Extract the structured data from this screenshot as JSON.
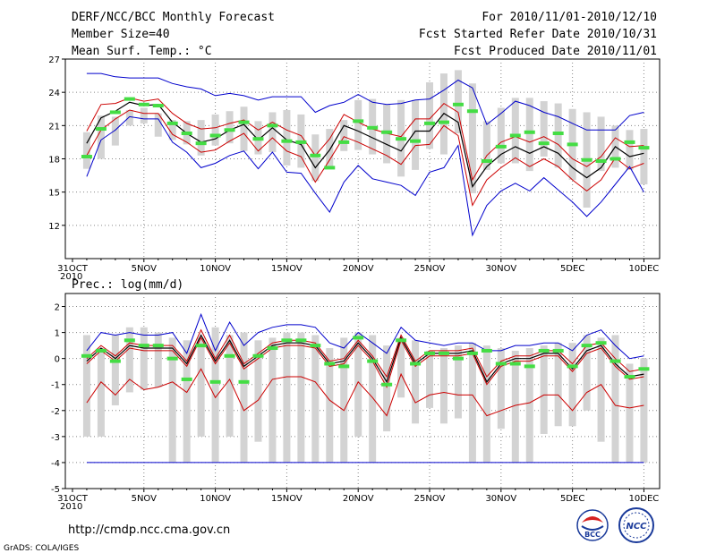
{
  "header": {
    "title": "DERF/NCC/BCC Monthly Forecast",
    "member_size": "Member Size=40",
    "variable": "Mean Surf. Temp.: °C",
    "forecast_period": "For 2010/11/01-2010/12/10",
    "started_refer": "Fcst Started Refer Date 2010/10/31",
    "produced": "Fcst Produced Date 2010/11/01"
  },
  "footer": {
    "url": "http://cmdp.ncc.cma.gov.cn",
    "credit": "GrADS: COLA/IGES",
    "logo_bcc_text": "BCC",
    "logo_ncc_text": "NCC"
  },
  "colors": {
    "max_min": "#0000cc",
    "spread": "#cc0000",
    "mean": "#000000",
    "bars": "#d3d3d3",
    "observed": "#44dd44"
  },
  "chart_data": [
    {
      "type": "line",
      "title": "Mean Surf. Temp.: °C",
      "x_tick_labels": [
        "31OCT",
        "5NOV",
        "10NOV",
        "15NOV",
        "20NOV",
        "25NOV",
        "30NOV",
        "5DEC",
        "10DEC"
      ],
      "x_tick_year": "2010",
      "x_tick_days": [
        0,
        5,
        10,
        15,
        20,
        25,
        30,
        35,
        40
      ],
      "y_ticks": [
        12,
        15,
        18,
        21,
        24,
        27
      ],
      "ylim": [
        9,
        27
      ],
      "grid": true,
      "days": [
        1,
        2,
        3,
        4,
        5,
        6,
        7,
        8,
        9,
        10,
        11,
        12,
        13,
        14,
        15,
        16,
        17,
        18,
        19,
        20,
        21,
        22,
        23,
        24,
        25,
        26,
        27,
        28,
        29,
        30,
        31,
        32,
        33,
        34,
        35,
        36,
        37,
        38,
        39,
        40
      ],
      "series": [
        {
          "name": "max",
          "color": "#0000cc",
          "values": [
            25.7,
            25.7,
            25.4,
            25.3,
            25.3,
            25.3,
            24.8,
            24.5,
            24.3,
            23.7,
            23.9,
            23.7,
            23.3,
            23.6,
            23.6,
            23.6,
            22.2,
            22.8,
            23.1,
            23.8,
            23.1,
            22.9,
            23.0,
            23.3,
            23.4,
            24.2,
            25.1,
            24.4,
            21.1,
            22.1,
            23.2,
            22.8,
            22.2,
            21.8,
            21.2,
            20.6,
            20.6,
            20.6,
            21.9,
            22.2
          ]
        },
        {
          "name": "upper",
          "color": "#cc0000",
          "values": [
            20.5,
            22.9,
            23.0,
            23.5,
            23.2,
            23.4,
            22.1,
            21.2,
            20.7,
            20.8,
            21.2,
            21.5,
            20.6,
            21.3,
            20.6,
            20.1,
            18.3,
            19.8,
            22.0,
            21.3,
            20.7,
            20.3,
            20.0,
            21.6,
            21.6,
            23.0,
            22.2,
            16.1,
            18.3,
            19.5,
            20.0,
            19.5,
            20.0,
            19.3,
            18.0,
            17.3,
            18.2,
            19.9,
            19.1,
            19.2
          ]
        },
        {
          "name": "mean",
          "color": "#000000",
          "values": [
            19.4,
            21.7,
            22.3,
            23.1,
            22.8,
            22.9,
            21.3,
            20.3,
            19.5,
            19.8,
            20.6,
            21.1,
            19.7,
            20.8,
            19.7,
            19.3,
            17.2,
            18.8,
            21.0,
            20.5,
            19.9,
            19.3,
            18.7,
            20.5,
            20.5,
            22.1,
            21.3,
            15.5,
            17.3,
            18.4,
            19.1,
            18.5,
            19.1,
            18.5,
            17.2,
            16.3,
            17.2,
            19.1,
            18.2,
            18.5
          ]
        },
        {
          "name": "lower",
          "color": "#cc0000",
          "values": [
            18.3,
            20.6,
            21.6,
            22.4,
            22.1,
            22.1,
            20.2,
            19.5,
            18.6,
            18.8,
            19.6,
            20.3,
            18.7,
            19.9,
            18.7,
            18.2,
            15.9,
            17.9,
            20.0,
            19.5,
            18.9,
            18.3,
            17.5,
            19.2,
            19.3,
            21.0,
            20.1,
            13.8,
            16.1,
            17.2,
            18.1,
            17.3,
            18.0,
            17.3,
            16.1,
            15.1,
            16.1,
            18.1,
            17.1,
            17.6
          ]
        },
        {
          "name": "min",
          "color": "#0000cc",
          "values": [
            16.4,
            19.7,
            20.6,
            21.8,
            21.6,
            21.6,
            19.5,
            18.6,
            17.2,
            17.6,
            18.3,
            18.7,
            17.1,
            18.6,
            16.8,
            16.7,
            14.9,
            13.2,
            15.9,
            17.4,
            16.2,
            15.9,
            15.6,
            14.7,
            16.8,
            17.2,
            19.2,
            11.1,
            13.8,
            15.1,
            15.8,
            15.1,
            16.3,
            15.2,
            14.1,
            12.8,
            14.1,
            15.7,
            17.3,
            15.0
          ]
        }
      ],
      "bars": {
        "top": [
          20.4,
          21.9,
          21.8,
          22.4,
          22.6,
          22.1,
          21.5,
          21.4,
          21.5,
          22.0,
          22.3,
          22.7,
          21.4,
          22.2,
          22.4,
          22.0,
          20.2,
          20.7,
          21.5,
          23.3,
          23.4,
          22.9,
          23.3,
          23.3,
          24.9,
          25.7,
          26.0,
          24.8,
          21.4,
          22.6,
          23.5,
          23.5,
          23.2,
          23.0,
          22.5,
          22.2,
          21.8,
          21.0,
          20.6,
          20.7
        ],
        "bottom": [
          17.1,
          18.0,
          19.2,
          21.0,
          21.2,
          20.0,
          19.7,
          19.3,
          18.3,
          19.2,
          19.4,
          18.7,
          18.4,
          18.6,
          17.4,
          17.2,
          16.0,
          17.2,
          18.7,
          18.8,
          18.4,
          17.6,
          16.4,
          17.0,
          18.9,
          18.4,
          20.3,
          14.9,
          17.0,
          17.6,
          17.6,
          16.9,
          18.2,
          17.2,
          16.1,
          13.6,
          16.9,
          17.2,
          17.0,
          15.7
        ]
      },
      "observed": [
        18.2,
        20.7,
        22.2,
        23.4,
        22.9,
        22.8,
        21.2,
        20.3,
        19.4,
        20.1,
        20.6,
        21.3,
        19.8,
        21.0,
        19.6,
        19.5,
        18.3,
        17.2,
        19.5,
        21.4,
        20.8,
        20.4,
        19.8,
        19.6,
        21.2,
        21.3,
        22.9,
        22.3,
        17.8,
        19.1,
        20.1,
        20.4,
        19.4,
        20.3,
        19.3,
        17.9,
        17.8,
        18.0,
        19.5,
        19.0
      ]
    },
    {
      "type": "line",
      "title": "Prec.: log(mm/d)",
      "x_tick_labels": [
        "31OCT",
        "5NOV",
        "10NOV",
        "15NOV",
        "20NOV",
        "25NOV",
        "30NOV",
        "5DEC",
        "10DEC"
      ],
      "x_tick_year": "2010",
      "x_tick_days": [
        0,
        5,
        10,
        15,
        20,
        25,
        30,
        35,
        40
      ],
      "y_ticks": [
        -5,
        -4,
        -3,
        -2,
        -1,
        0,
        1,
        2
      ],
      "ylim": [
        -5,
        2.5
      ],
      "grid": true,
      "days": [
        1,
        2,
        3,
        4,
        5,
        6,
        7,
        8,
        9,
        10,
        11,
        12,
        13,
        14,
        15,
        16,
        17,
        18,
        19,
        20,
        21,
        22,
        23,
        24,
        25,
        26,
        27,
        28,
        29,
        30,
        31,
        32,
        33,
        34,
        35,
        36,
        37,
        38,
        39,
        40
      ],
      "series": [
        {
          "name": "max",
          "color": "#0000cc",
          "values": [
            0.3,
            1.0,
            0.9,
            1.0,
            0.9,
            0.9,
            1.0,
            0.2,
            1.7,
            0.3,
            1.4,
            0.5,
            1.0,
            1.2,
            1.3,
            1.3,
            1.2,
            0.6,
            0.4,
            1.0,
            0.6,
            0.2,
            1.2,
            0.7,
            0.6,
            0.5,
            0.6,
            0.6,
            0.3,
            0.3,
            0.5,
            0.5,
            0.6,
            0.6,
            0.3,
            0.9,
            1.1,
            0.5,
            0.0,
            0.1
          ]
        },
        {
          "name": "upper",
          "color": "#cc0000",
          "values": [
            0.0,
            0.5,
            0.1,
            0.6,
            0.5,
            0.5,
            0.5,
            -0.1,
            1.1,
            0.0,
            0.9,
            -0.2,
            0.2,
            0.6,
            0.7,
            0.7,
            0.6,
            -0.1,
            0.0,
            0.7,
            0.1,
            -0.7,
            0.9,
            -0.1,
            0.3,
            0.3,
            0.3,
            0.4,
            -0.7,
            -0.1,
            0.1,
            0.1,
            0.3,
            0.3,
            -0.2,
            0.5,
            0.6,
            0.0,
            -0.5,
            -0.4
          ]
        },
        {
          "name": "mean",
          "color": "#000000",
          "values": [
            -0.1,
            0.4,
            0.0,
            0.5,
            0.4,
            0.4,
            0.4,
            -0.2,
            0.9,
            -0.1,
            0.7,
            -0.3,
            0.1,
            0.5,
            0.6,
            0.6,
            0.5,
            -0.2,
            -0.1,
            0.6,
            0.0,
            -0.9,
            0.8,
            -0.2,
            0.2,
            0.2,
            0.2,
            0.3,
            -0.9,
            -0.2,
            0.0,
            0.0,
            0.2,
            0.2,
            -0.4,
            0.3,
            0.5,
            -0.2,
            -0.7,
            -0.6
          ]
        },
        {
          "name": "lower",
          "color": "#cc0000",
          "values": [
            -0.2,
            0.3,
            -0.1,
            0.4,
            0.3,
            0.3,
            0.3,
            -0.3,
            0.8,
            -0.2,
            0.6,
            -0.4,
            0.0,
            0.4,
            0.5,
            0.5,
            0.4,
            -0.3,
            -0.2,
            0.5,
            -0.1,
            -1.1,
            0.7,
            -0.3,
            0.1,
            0.1,
            0.1,
            0.2,
            -1.0,
            -0.3,
            -0.1,
            -0.1,
            0.1,
            0.1,
            -0.5,
            0.2,
            0.4,
            -0.3,
            -0.8,
            -0.7
          ]
        },
        {
          "name": "min",
          "color": "#cc0000",
          "values": [
            -1.7,
            -0.9,
            -1.4,
            -0.8,
            -1.2,
            -1.1,
            -0.9,
            -1.3,
            -0.4,
            -1.5,
            -0.8,
            -2.0,
            -1.6,
            -0.8,
            -0.7,
            -0.7,
            -0.9,
            -1.6,
            -2.0,
            -0.9,
            -1.5,
            -2.2,
            -0.6,
            -1.7,
            -1.4,
            -1.3,
            -1.4,
            -1.4,
            -2.2,
            -2.0,
            -1.8,
            -1.7,
            -1.4,
            -1.4,
            -2.0,
            -1.3,
            -1.0,
            -1.8,
            -1.9,
            -1.8
          ]
        }
      ],
      "floor_line": {
        "value": -4,
        "color": "#0000cc"
      },
      "bars": {
        "top": [
          0.9,
          0.4,
          0.9,
          1.2,
          1.2,
          1.0,
          0.8,
          0.7,
          0.8,
          1.2,
          0.9,
          1.0,
          0.7,
          0.8,
          1.0,
          1.0,
          0.9,
          0.4,
          0.8,
          1.0,
          0.9,
          0.5,
          0.8,
          0.7,
          0.3,
          0.4,
          0.5,
          0.6,
          0.5,
          0.4,
          0.3,
          0.4,
          0.5,
          0.6,
          0.6,
          0.9,
          0.8,
          0.9,
          -0.2,
          0.0
        ],
        "bottom": [
          -3.0,
          -3.0,
          -1.8,
          -1.3,
          -1.2,
          -1.1,
          -4.0,
          -4.0,
          -3.0,
          -4.0,
          -3.0,
          -4.0,
          -3.2,
          -4.0,
          -4.0,
          -4.0,
          -4.0,
          -4.0,
          -4.0,
          -3.0,
          -4.0,
          -2.8,
          -1.5,
          -2.5,
          -1.9,
          -2.5,
          -2.3,
          -4.0,
          -4.0,
          -2.7,
          -4.0,
          -4.0,
          -2.9,
          -2.6,
          -2.6,
          -2.0,
          -3.2,
          -4.0,
          -4.0,
          -4.0
        ]
      },
      "observed": [
        0.1,
        0.3,
        -0.1,
        0.7,
        0.5,
        0.5,
        0.0,
        -0.8,
        0.5,
        -0.9,
        0.1,
        -0.9,
        0.1,
        0.4,
        0.7,
        0.7,
        0.5,
        -0.2,
        -0.3,
        0.8,
        -0.1,
        -1.0,
        0.7,
        -0.2,
        0.2,
        0.2,
        0.0,
        0.2,
        0.3,
        -0.2,
        -0.2,
        -0.3,
        0.3,
        0.3,
        -0.3,
        0.5,
        0.6,
        -0.1,
        -0.7,
        -0.4
      ]
    }
  ]
}
